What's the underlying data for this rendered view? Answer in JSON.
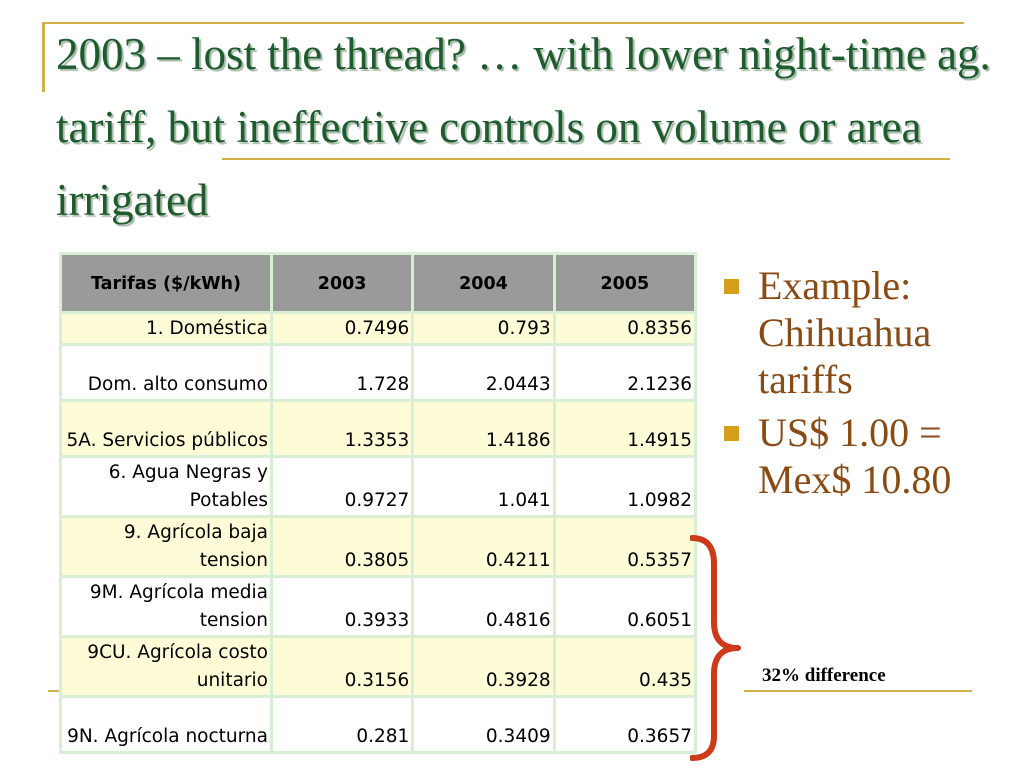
{
  "title": "2003 –  lost the thread? … with lower night-time ag. tariff, but ineffective controls on volume or area irrigated",
  "table": {
    "headers": [
      "Tarifas ($/kWh)",
      "2003",
      "2004",
      "2005"
    ],
    "rows": [
      {
        "name": "1. Doméstica",
        "v2003": "0.7496",
        "v2004": "0.793",
        "v2005": "0.8356"
      },
      {
        "name": "Dom. alto consumo",
        "v2003": "1.728",
        "v2004": "2.0443",
        "v2005": "2.1236"
      },
      {
        "name": "5A. Servicios públicos",
        "v2003": "1.3353",
        "v2004": "1.4186",
        "v2005": "1.4915"
      },
      {
        "name": "6. Agua Negras y Potables",
        "v2003": "0.9727",
        "v2004": "1.041",
        "v2005": "1.0982"
      },
      {
        "name": "9. Agrícola baja tension",
        "v2003": "0.3805",
        "v2004": "0.4211",
        "v2005": "0.5357"
      },
      {
        "name": "9M. Agrícola media tension",
        "v2003": "0.3933",
        "v2004": "0.4816",
        "v2005": "0.6051"
      },
      {
        "name": "9CU. Agrícola costo unitario",
        "v2003": "0.3156",
        "v2004": "0.3928",
        "v2005": "0.435"
      },
      {
        "name": "9N. Agrícola nocturna",
        "v2003": "0.281",
        "v2004": "0.3409",
        "v2005": "0.3657"
      }
    ]
  },
  "bullets": [
    "Example: Chihuahua tariffs",
    "US$ 1.00 = Mex$ 10.80"
  ],
  "note": "32% difference",
  "colors": {
    "title": "#1e5c2e",
    "accent_line": "#d4b04a",
    "bullet_text": "#8a4a14",
    "brace": "#cc3a1a",
    "row_highlight": "#fefcd6",
    "header_bg": "#9a9a9a"
  }
}
